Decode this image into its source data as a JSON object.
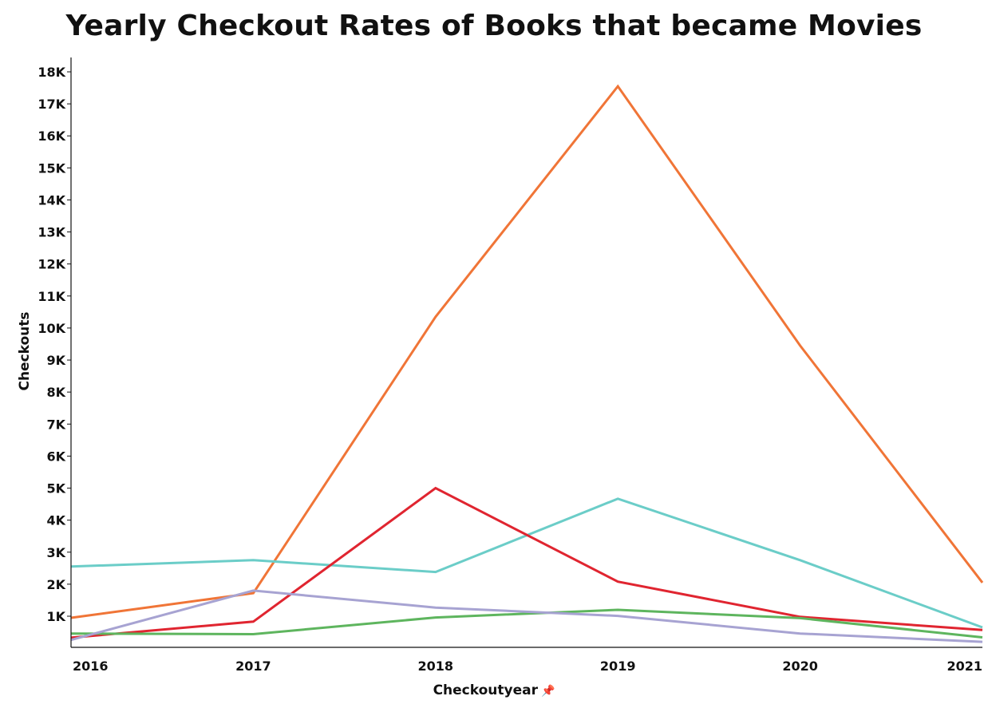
{
  "chart_data": {
    "type": "line",
    "title": "Yearly Checkout Rates of Books that became Movies",
    "xlabel": "Checkoutyear",
    "ylabel": "Checkouts",
    "x": [
      2016,
      2017,
      2018,
      2019,
      2020,
      2021
    ],
    "x_tick_labels": [
      "2016",
      "2017",
      "2018",
      "2019",
      "2020",
      "2021"
    ],
    "y_ticks": [
      1000,
      2000,
      3000,
      4000,
      5000,
      6000,
      7000,
      8000,
      9000,
      10000,
      11000,
      12000,
      13000,
      14000,
      15000,
      16000,
      17000,
      18000
    ],
    "y_tick_labels": [
      "1K",
      "2K",
      "3K",
      "4K",
      "5K",
      "6K",
      "7K",
      "8K",
      "9K",
      "10K",
      "11K",
      "12K",
      "13K",
      "14K",
      "15K",
      "16K",
      "17K",
      "18K"
    ],
    "ylim": [
      100,
      18500
    ],
    "grid": false,
    "legend": "none",
    "series": [
      {
        "color": "#f07537",
        "values": [
          950,
          1720,
          10350,
          17550,
          9450,
          2050
        ]
      },
      {
        "color": "#6bcdc8",
        "values": [
          2550,
          2750,
          2380,
          4670,
          2750,
          650
        ]
      },
      {
        "color": "#e02530",
        "values": [
          330,
          830,
          5000,
          2080,
          980,
          570
        ]
      },
      {
        "color": "#5eb55e",
        "values": [
          460,
          440,
          960,
          1200,
          940,
          340
        ]
      },
      {
        "color": "#a7a3d2",
        "values": [
          260,
          1800,
          1270,
          1010,
          460,
          200
        ]
      }
    ]
  },
  "ui": {
    "xlabel_pin_icon": "pin-icon"
  }
}
